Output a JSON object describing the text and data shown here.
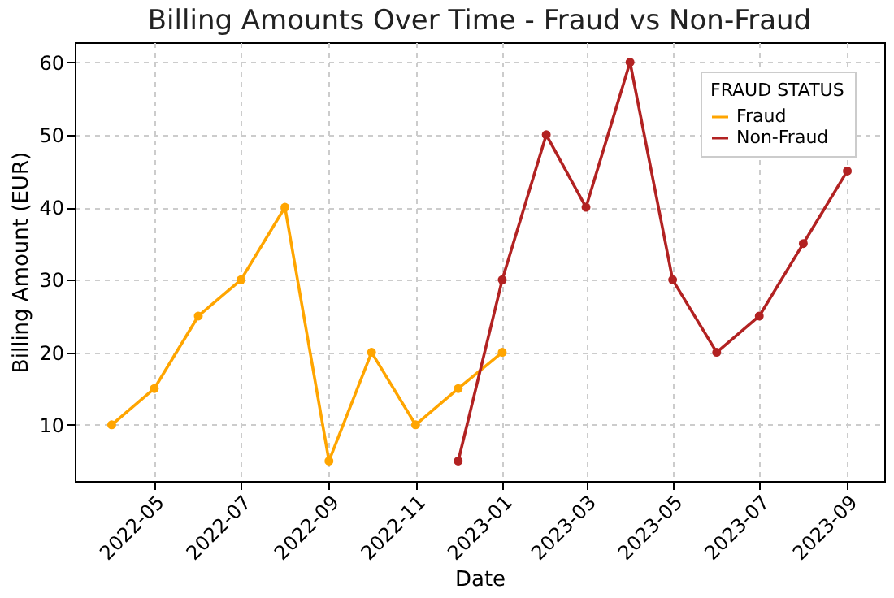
{
  "chart_data": {
    "type": "line",
    "title": "Billing Amounts Over Time - Fraud vs Non-Fraud",
    "xlabel": "Date",
    "ylabel": "Billing Amount (EUR)",
    "legend_title": "FRAUD STATUS",
    "series": [
      {
        "name": "Fraud",
        "color": "#ffa500",
        "x": [
          "2022-04",
          "2022-05",
          "2022-06",
          "2022-07",
          "2022-08",
          "2022-09",
          "2022-10",
          "2022-11",
          "2022-12",
          "2023-01"
        ],
        "values": [
          10,
          15,
          25,
          30,
          40,
          5,
          20,
          10,
          15,
          20
        ]
      },
      {
        "name": "Non-Fraud",
        "color": "#b22222",
        "x": [
          "2022-12",
          "2023-01",
          "2023-02",
          "2023-03",
          "2023-04",
          "2023-05",
          "2023-06",
          "2023-07",
          "2023-08",
          "2023-09"
        ],
        "values": [
          5,
          30,
          50,
          40,
          60,
          30,
          20,
          25,
          35,
          45
        ]
      }
    ],
    "xlim": [
      "2022-03-06",
      "2023-09-27"
    ],
    "xticks": [
      "2022-05",
      "2022-07",
      "2022-09",
      "2022-11",
      "2023-01",
      "2023-03",
      "2023-05",
      "2023-07",
      "2023-09"
    ],
    "ylim": [
      2.25,
      62.75
    ],
    "yticks": [
      10,
      20,
      30,
      40,
      50,
      60
    ],
    "grid": true,
    "legend": "top right",
    "marker": "circle",
    "line_style": "solid"
  }
}
